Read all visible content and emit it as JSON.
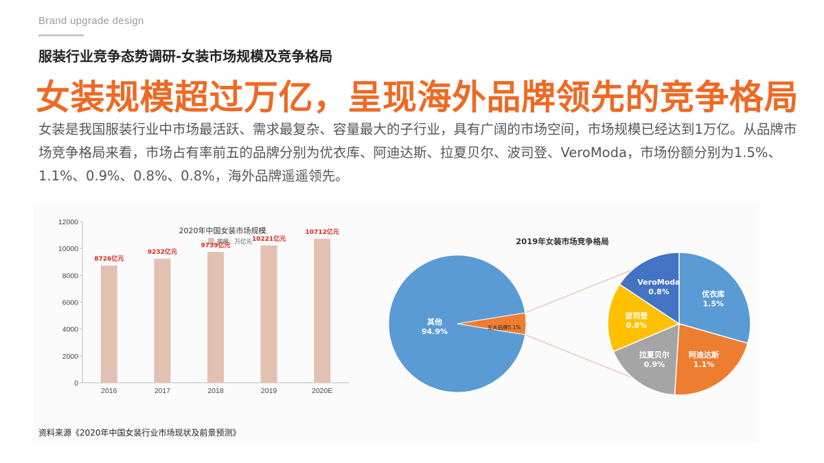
{
  "header": {
    "brand": "Brand upgrade design",
    "subtitle": "服装行业竞争态势调研-女装市场规模及竞争格局",
    "headline": "女装规模超过万亿，呈现海外品牌领先的竞争格局",
    "body": "女装是我国服装行业中市场最活跃、需求最复杂、容量最大的子行业，具有广阔的市场空间，市场规模已经达到1万亿。从品牌市场竞争格局来看，市场占有率前五的品牌分别为优衣库、阿迪达斯、拉夏贝尔、波司登、VeroModa，市场份额分别为1.5%、1.1%、0.9%、0.8%、0.8%，海外品牌遥遥领先。"
  },
  "source": "资料来源《2020年中国女装行业市场现状及前景预测》",
  "colors": {
    "accent": "#ee6a24",
    "bar": "#e2c1b3",
    "bar_label": "#e0241b",
    "pie_blue": "#5b9bd5",
    "pie_orange": "#ed7d31",
    "pie_gray": "#a5a5a5",
    "pie_gold": "#ffc000",
    "pie_darkblue": "#4472c4",
    "connector": "#e8c9b8"
  },
  "chart_data": [
    {
      "type": "bar",
      "title": "2020年中国女装市场规模",
      "legend": "规模：万亿元",
      "categories": [
        "2016",
        "2017",
        "2018",
        "2019",
        "2020E"
      ],
      "values": [
        8726,
        9232,
        9739,
        10221,
        10712
      ],
      "data_labels": [
        "8726亿元",
        "9232亿元",
        "9739亿元",
        "10221亿元",
        "10712亿元"
      ],
      "ylim": [
        0,
        12000
      ],
      "yticks": [
        0,
        2000,
        4000,
        6000,
        8000,
        10000,
        12000
      ],
      "xlabel": "",
      "ylabel": "",
      "grid": false,
      "legend_position": "top"
    },
    {
      "type": "pie",
      "title": "2019年女装市场竞争格局",
      "slices": [
        {
          "name": "其他",
          "value": 94.9,
          "label": "94.9%"
        },
        {
          "name": "五大品牌",
          "value": 5.1,
          "label": "5.1%"
        }
      ],
      "breakdown": {
        "of": "五大品牌",
        "slices": [
          {
            "name": "优衣库",
            "value": 1.5,
            "label": "1.5%"
          },
          {
            "name": "阿迪达斯",
            "value": 1.1,
            "label": "1.1%"
          },
          {
            "name": "拉夏贝尔",
            "value": 0.9,
            "label": "0.9%"
          },
          {
            "name": "波司登",
            "value": 0.8,
            "label": "0.8%"
          },
          {
            "name": "VeroModa",
            "value": 0.8,
            "label": "0.8%"
          }
        ]
      }
    }
  ]
}
